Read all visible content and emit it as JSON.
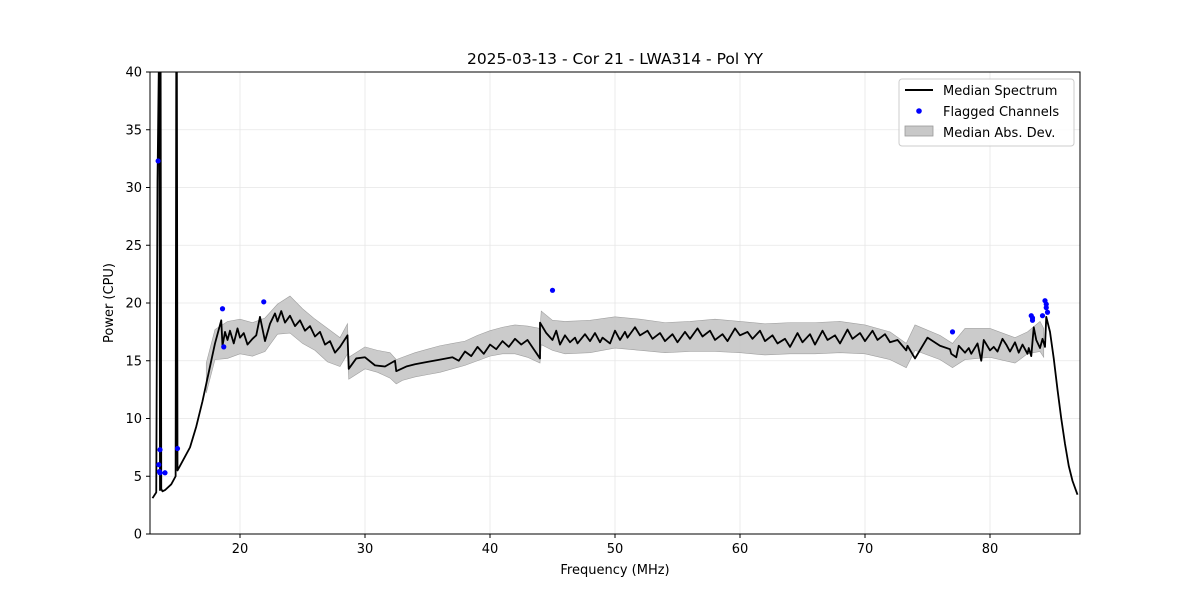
{
  "chart_data": {
    "type": "line",
    "title": "2025-03-13 - Cor 21 - LWA314 - Pol YY",
    "xlabel": "Frequency (MHz)",
    "ylabel": "Power (CPU)",
    "xlim": [
      12.8,
      87.2
    ],
    "ylim": [
      0,
      40
    ],
    "x_ticks": [
      20,
      30,
      40,
      50,
      60,
      70,
      80
    ],
    "y_ticks": [
      0,
      5,
      10,
      15,
      20,
      25,
      30,
      35,
      40
    ],
    "grid": true,
    "legend_position": "top-right",
    "colors": {
      "median": "#000000",
      "flagged": "#0000ff",
      "band": "#c8c8c8"
    },
    "series": [
      {
        "name": "Median Spectrum",
        "kind": "line",
        "x": [
          13.0,
          13.3,
          13.4,
          13.5,
          13.55,
          13.6,
          13.65,
          13.7,
          13.8,
          14.0,
          14.5,
          14.85,
          14.9,
          14.95,
          15.0,
          15.1,
          15.5,
          16.0,
          16.5,
          17.0,
          17.5,
          18.0,
          18.5,
          18.6,
          18.8,
          19.0,
          19.2,
          19.5,
          19.8,
          20.0,
          20.3,
          20.6,
          21.0,
          21.3,
          21.6,
          22.0,
          22.4,
          22.8,
          23.0,
          23.3,
          23.6,
          24.0,
          24.4,
          24.8,
          25.2,
          25.6,
          26.0,
          26.4,
          26.8,
          27.2,
          27.6,
          28.0,
          28.6,
          28.7,
          29.3,
          30.0,
          30.8,
          31.6,
          32.4,
          32.5,
          33.3,
          34.0,
          35.0,
          36.0,
          37.0,
          37.5,
          38.0,
          38.5,
          39.0,
          39.5,
          40.0,
          40.5,
          41.0,
          41.5,
          42.0,
          42.5,
          43.0,
          43.5,
          44.0,
          44.0,
          44.5,
          45.0,
          45.3,
          45.6,
          46.0,
          46.4,
          46.8,
          47.0,
          47.6,
          48.0,
          48.4,
          48.8,
          49.0,
          49.6,
          50.0,
          50.4,
          50.8,
          51.0,
          51.6,
          52.0,
          52.6,
          53.0,
          53.6,
          54.0,
          54.6,
          55.0,
          55.6,
          56.0,
          56.6,
          57.0,
          57.6,
          58.0,
          58.6,
          59.0,
          59.6,
          60.0,
          60.6,
          61.0,
          61.6,
          62.0,
          62.6,
          63.0,
          63.6,
          64.0,
          64.6,
          65.0,
          65.6,
          66.0,
          66.6,
          67.0,
          67.6,
          68.0,
          68.6,
          69.0,
          69.6,
          70.0,
          70.6,
          71.0,
          71.6,
          72.0,
          72.6,
          73.3,
          73.4,
          74.0,
          75.0,
          76.0,
          76.8,
          76.9,
          77.3,
          77.5,
          78.0,
          78.3,
          78.5,
          79.0,
          79.3,
          79.5,
          80.0,
          80.3,
          80.6,
          81.0,
          81.3,
          81.6,
          82.0,
          82.3,
          82.6,
          83.0,
          83.1,
          83.3,
          83.5,
          83.7,
          84.0,
          84.2,
          84.4,
          84.5,
          84.8,
          85.1,
          85.4,
          85.7,
          86.0,
          86.3,
          86.6,
          87.0
        ],
        "y": [
          3.1,
          3.6,
          30.5,
          40.0,
          40.0,
          3.8,
          40.0,
          3.9,
          3.7,
          3.8,
          4.3,
          5.0,
          40.0,
          40.0,
          5.5,
          5.7,
          6.5,
          7.5,
          9.3,
          11.5,
          14.0,
          16.5,
          18.5,
          16.3,
          17.5,
          16.8,
          17.6,
          16.5,
          17.8,
          17.0,
          17.4,
          16.4,
          16.9,
          17.2,
          18.8,
          16.7,
          18.2,
          19.1,
          18.4,
          19.3,
          18.3,
          18.9,
          18.0,
          18.5,
          17.6,
          18.0,
          17.1,
          17.5,
          16.4,
          16.7,
          15.7,
          16.2,
          17.2,
          14.3,
          15.2,
          15.3,
          14.6,
          14.5,
          15.0,
          14.1,
          14.5,
          14.7,
          14.9,
          15.1,
          15.3,
          15.0,
          15.8,
          15.4,
          16.2,
          15.6,
          16.4,
          16.0,
          16.7,
          16.2,
          16.9,
          16.4,
          16.8,
          16.0,
          15.2,
          18.3,
          17.4,
          16.8,
          17.6,
          16.4,
          17.2,
          16.6,
          17.0,
          16.5,
          17.3,
          16.7,
          17.4,
          16.6,
          17.0,
          16.5,
          17.6,
          16.8,
          17.5,
          17.0,
          17.9,
          17.2,
          17.6,
          16.9,
          17.4,
          16.7,
          17.3,
          16.6,
          17.5,
          16.9,
          17.8,
          17.1,
          17.6,
          16.8,
          17.3,
          16.7,
          17.8,
          17.2,
          17.5,
          16.9,
          17.6,
          16.7,
          17.2,
          16.5,
          16.9,
          16.2,
          17.4,
          16.6,
          17.3,
          16.4,
          17.6,
          16.8,
          17.2,
          16.5,
          17.7,
          16.9,
          17.4,
          16.7,
          17.6,
          16.8,
          17.3,
          16.6,
          16.8,
          15.9,
          16.3,
          15.2,
          17.0,
          16.3,
          16.0,
          15.6,
          15.3,
          16.3,
          15.7,
          16.1,
          15.6,
          16.5,
          15.0,
          16.8,
          15.9,
          16.2,
          15.8,
          16.9,
          16.4,
          15.8,
          16.6,
          15.7,
          16.4,
          15.6,
          16.1,
          15.4,
          17.9,
          16.8,
          16.1,
          16.9,
          16.2,
          18.8,
          17.5,
          15.2,
          12.5,
          10.0,
          7.8,
          5.9,
          4.6,
          3.4
        ]
      },
      {
        "name": "Flagged Channels",
        "kind": "scatter",
        "x": [
          13.45,
          13.5,
          13.55,
          13.6,
          13.6,
          14.0,
          15.0,
          18.6,
          18.7,
          21.9,
          45.0,
          77.0,
          83.3,
          83.4,
          83.4,
          84.2,
          84.4,
          84.5,
          84.5,
          84.6
        ],
        "y": [
          32.3,
          6.0,
          5.4,
          7.3,
          5.3,
          5.3,
          7.4,
          19.5,
          16.2,
          20.1,
          21.1,
          17.5,
          18.9,
          18.7,
          18.5,
          18.9,
          20.2,
          19.9,
          19.6,
          19.2
        ]
      },
      {
        "name": "Median Abs. Dev.",
        "kind": "band",
        "x": [
          17.3,
          18.0,
          19.0,
          20.0,
          21.0,
          22.0,
          23.0,
          24.0,
          25.0,
          26.0,
          27.0,
          28.0,
          28.6,
          28.7,
          30.0,
          31.0,
          32.0,
          32.5,
          33.0,
          34.0,
          35.0,
          36.0,
          37.0,
          38.0,
          39.0,
          40.0,
          41.0,
          42.0,
          43.0,
          44.0,
          44.1,
          45.0,
          46.0,
          48.0,
          50.0,
          52.0,
          54.0,
          56.0,
          58.0,
          60.0,
          62.0,
          64.0,
          66.0,
          68.0,
          70.0,
          72.0,
          73.3,
          74.0,
          76.0,
          77.0,
          78.0,
          80.0,
          82.0,
          83.0,
          84.0,
          84.3
        ],
        "upper": [
          14.8,
          17.7,
          18.4,
          18.6,
          18.3,
          18.7,
          19.9,
          20.6,
          19.5,
          18.6,
          17.8,
          17.0,
          18.2,
          15.3,
          16.2,
          15.9,
          15.7,
          15.1,
          15.3,
          15.7,
          16.0,
          16.3,
          16.5,
          16.7,
          17.2,
          17.6,
          17.9,
          18.1,
          18.0,
          17.8,
          19.3,
          18.5,
          18.4,
          18.5,
          18.8,
          18.6,
          18.3,
          18.4,
          18.6,
          18.4,
          18.2,
          18.3,
          18.3,
          18.4,
          18.1,
          17.5,
          16.5,
          18.1,
          17.2,
          16.5,
          17.8,
          17.8,
          17.0,
          17.5,
          18.4,
          17.8
        ],
        "lower": [
          12.2,
          15.1,
          15.2,
          15.6,
          15.4,
          15.8,
          17.3,
          17.4,
          16.5,
          15.9,
          14.9,
          14.5,
          15.6,
          13.4,
          14.3,
          14.0,
          13.5,
          13.0,
          13.3,
          13.6,
          13.8,
          14.0,
          14.3,
          14.6,
          15.0,
          15.4,
          15.6,
          15.6,
          15.3,
          14.8,
          16.4,
          15.9,
          15.6,
          15.7,
          16.1,
          15.9,
          15.7,
          15.8,
          15.8,
          15.7,
          15.5,
          15.6,
          15.6,
          15.7,
          15.6,
          15.1,
          14.4,
          15.9,
          15.1,
          14.4,
          15.1,
          15.3,
          14.8,
          15.6,
          15.8,
          15.3
        ]
      }
    ]
  }
}
